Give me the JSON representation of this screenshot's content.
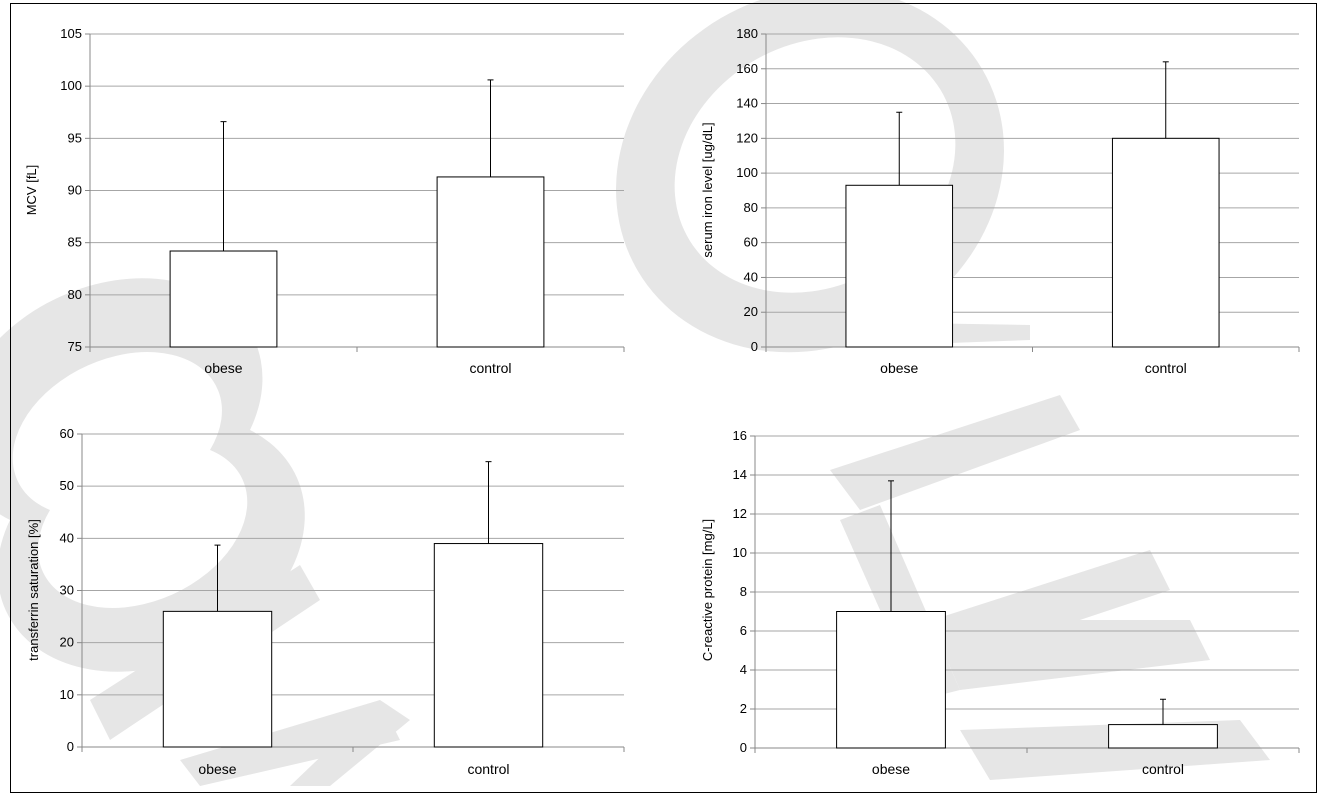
{
  "watermark": {
    "color": "#e6e6e6",
    "glyphs": [
      "O",
      "W",
      "W"
    ]
  },
  "chart_data": [
    {
      "type": "bar",
      "categories": [
        "obese",
        "control"
      ],
      "series": [
        {
          "values": [
            84.2,
            91.3
          ],
          "error_plus": [
            12.4,
            9.3
          ]
        }
      ],
      "xlabel": "",
      "ylabel": "MCV [fL]",
      "ylim": [
        75,
        105
      ],
      "yticks": [
        75,
        80,
        85,
        90,
        95,
        100,
        105
      ],
      "grid": true,
      "bar_fill": "#ffffff",
      "bar_stroke": "#000000",
      "grid_color": "#a6a6a6"
    },
    {
      "type": "bar",
      "categories": [
        "obese",
        "control"
      ],
      "series": [
        {
          "values": [
            93,
            120
          ],
          "error_plus": [
            42,
            44
          ]
        }
      ],
      "xlabel": "",
      "ylabel": "serum iron level [ug/dL]",
      "ylim": [
        0,
        180
      ],
      "yticks": [
        0,
        20,
        40,
        60,
        80,
        100,
        120,
        140,
        160,
        180
      ],
      "grid": true,
      "bar_fill": "#ffffff",
      "bar_stroke": "#000000",
      "grid_color": "#a6a6a6"
    },
    {
      "type": "bar",
      "categories": [
        "obese",
        "control"
      ],
      "series": [
        {
          "values": [
            26,
            39
          ],
          "error_plus": [
            12.7,
            15.7
          ]
        }
      ],
      "xlabel": "",
      "ylabel": "transferrin saturation [%]",
      "ylim": [
        0,
        60
      ],
      "yticks": [
        0,
        10,
        20,
        30,
        40,
        50,
        60
      ],
      "grid": true,
      "bar_fill": "#ffffff",
      "bar_stroke": "#000000",
      "grid_color": "#a6a6a6"
    },
    {
      "type": "bar",
      "categories": [
        "obese",
        "control"
      ],
      "series": [
        {
          "values": [
            7.0,
            1.2
          ],
          "error_plus": [
            6.7,
            1.3
          ]
        }
      ],
      "xlabel": "",
      "ylabel": "C-reactive protein [mg/L]",
      "ylim": [
        0,
        16
      ],
      "yticks": [
        0,
        2,
        4,
        6,
        8,
        10,
        12,
        14,
        16
      ],
      "grid": true,
      "bar_fill": "#ffffff",
      "bar_stroke": "#000000",
      "grid_color": "#a6a6a6"
    }
  ]
}
